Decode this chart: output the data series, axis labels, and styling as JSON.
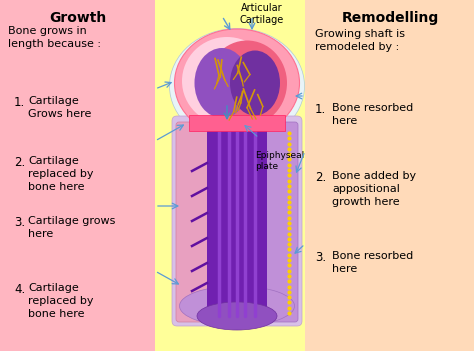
{
  "bg_color": "#FFFF99",
  "left_panel_color": "#FFB6C1",
  "right_panel_color": "#FFDAB9",
  "growth_title": "Growth",
  "growth_subtitle": "Bone grows in\nlength because :",
  "growth_items": [
    "Cartilage\nGrows here",
    "Cartilage\nreplaced by\nbone here",
    "Cartilage grows\nhere",
    "Cartilage\nreplaced by\nbone here"
  ],
  "remodel_title": "Remodelling",
  "remodel_subtitle": "Growing shaft is\nremodeled by :",
  "remodel_items": [
    "Bone resorbed\nhere",
    "Bone added by\nappositional\ngrowth here",
    "Bone resorbed\nhere"
  ],
  "articular_label": "Articular\nCartilage",
  "epiphyseal_label": "Epiphyseal\nplate",
  "arrow_color": "#5B9BD5",
  "dotted_color": "#FFD700"
}
